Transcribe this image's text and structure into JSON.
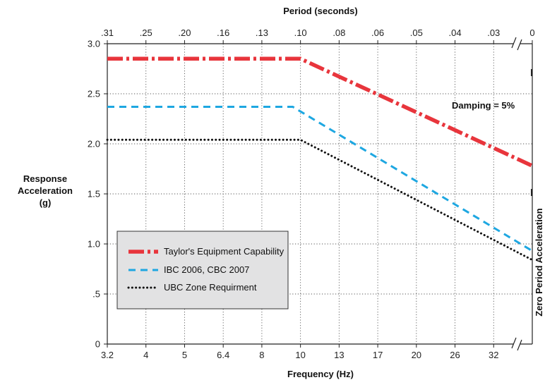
{
  "chart_data": {
    "type": "line",
    "title": "",
    "top_axis_title": "Period (seconds)",
    "xlabel": "Frequency (Hz)",
    "ylabel_lines": [
      "Response",
      "Acceleration",
      "(g)"
    ],
    "right_label": "Zero Period Acceleration",
    "annotation": "Damping = 5%",
    "x_tick_labels": [
      "3.2",
      "4",
      "5",
      "6.4",
      "8",
      "10",
      "13",
      "17",
      "20",
      "26",
      "32"
    ],
    "top_tick_labels": [
      ".31",
      ".25",
      ".20",
      ".16",
      ".13",
      ".10",
      ".08",
      ".06",
      ".05",
      ".04",
      ".03",
      "0"
    ],
    "y_tick_labels": [
      "0",
      ".5",
      "1.0",
      "1.5",
      "2.0",
      "2.5",
      "3.0"
    ],
    "ylim": [
      0,
      3.0
    ],
    "grid": true,
    "legend_position": "lower-left",
    "series": [
      {
        "name": "Taylor's Equipment Capability",
        "color": "#e8353c",
        "style": "dash-dot",
        "points": [
          {
            "x": "3.2",
            "y": 2.85
          },
          {
            "x": "10",
            "y": 2.85
          },
          {
            "x": "ZPA",
            "y": 1.78
          }
        ]
      },
      {
        "name": "IBC 2006, CBC 2007",
        "color": "#1ea7e1",
        "style": "dashed",
        "points": [
          {
            "x": "3.2",
            "y": 2.37
          },
          {
            "x": "9.6",
            "y": 2.37
          },
          {
            "x": "ZPA",
            "y": 0.93
          }
        ]
      },
      {
        "name": "UBC Zone Requirment",
        "color": "#111111",
        "style": "dotted",
        "points": [
          {
            "x": "3.2",
            "y": 2.04
          },
          {
            "x": "10",
            "y": 2.04
          },
          {
            "x": "ZPA",
            "y": 0.84
          }
        ]
      }
    ]
  }
}
